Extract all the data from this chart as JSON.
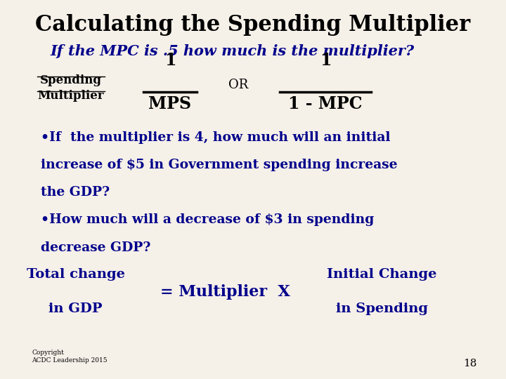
{
  "title": "Calculating the Spending Multiplier",
  "subtitle": "If the MPC is .5 how much is the multiplier?",
  "spending_multiplier_line1": "Spending",
  "spending_multiplier_line2": "Multiplier",
  "fraction1_num": "1",
  "fraction1_den": "MPS",
  "or_text": "OR",
  "fraction2_num": "1",
  "fraction2_den": "1 - MPC",
  "bullet1_line1": "•If  the multiplier is 4, how much will an initial",
  "bullet1_line2": "increase of $5 in Government spending increase",
  "bullet1_line3": "the GDP?",
  "bullet2_line1": "•How much will a decrease of $3 in spending",
  "bullet2_line2": "decrease GDP?",
  "total_change_line1": "Total change",
  "total_change_line2": "in GDP",
  "equals_multiplier": "= Multiplier  X",
  "initial_change_line1": "Initial Change",
  "initial_change_line2": "in Spending",
  "copyright": "Copyright\nACDC Leadership 2015",
  "page_number": "18",
  "bg_color": "#f5f0e8",
  "title_color": "#000000",
  "subtitle_color": "#00008B",
  "body_color": "#00008B",
  "fraction_color": "#000000",
  "bottom_color": "#00008B",
  "copyright_color": "#000000"
}
